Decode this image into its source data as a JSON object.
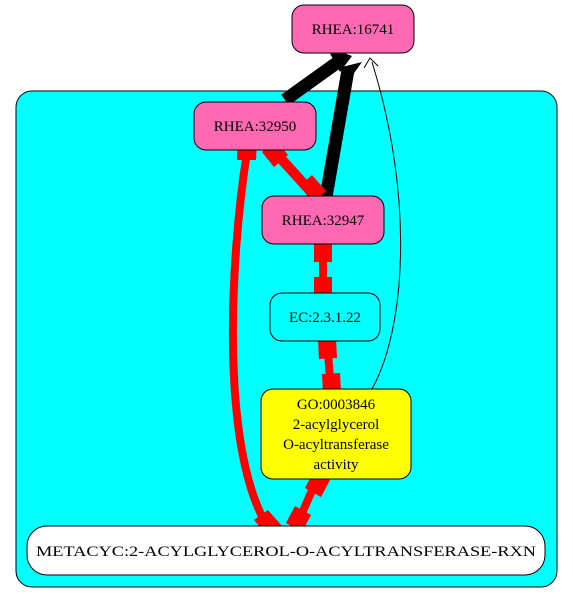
{
  "colors": {
    "cluster_fill": "#00ffff",
    "rhea_fill": "#ff69b4",
    "ec_fill": "#00ffff",
    "go_fill": "#ffff00",
    "metacyc_fill": "#ffffff",
    "edge_red": "#ff0000",
    "edge_black": "#000000"
  },
  "nodes": {
    "rhea_16741": {
      "label": "RHEA:16741"
    },
    "rhea_32950": {
      "label": "RHEA:32950"
    },
    "rhea_32947": {
      "label": "RHEA:32947"
    },
    "ec": {
      "label": "EC:2.3.1.22"
    },
    "go": {
      "line1": "GO:0003846",
      "line2": "2-acylglycerol",
      "line3": "O-acyltransferase",
      "line4": "activity"
    },
    "metacyc": {
      "label": "METACYC:2-ACYLGLYCEROL-O-ACYLTRANSFERASE-RXN"
    }
  }
}
